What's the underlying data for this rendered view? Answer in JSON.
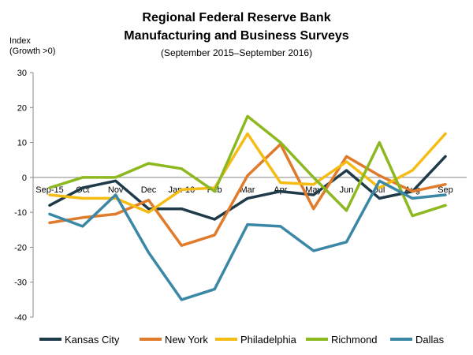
{
  "chart_data": {
    "type": "line",
    "title_line1": "Regional Federal Reserve Bank",
    "title_line2": "Manufacturing and Business Surveys",
    "subtitle": "(September  2015–September  2016)",
    "ylabel_line1": "Index",
    "ylabel_line2": "(Growth >0)",
    "categories": [
      "Sep-15",
      "Oct",
      "Nov",
      "Dec",
      "Jan-16",
      "Feb",
      "Mar",
      "Apr",
      "May",
      "Jun",
      "Jul",
      "Aug",
      "Sep"
    ],
    "ylim": [
      -40,
      30
    ],
    "yticks": [
      30,
      20,
      10,
      0,
      -10,
      -20,
      -30,
      -40
    ],
    "series": [
      {
        "name": "Kansas City",
        "color": "#1f3a48",
        "values": [
          -8,
          -3,
          -1,
          -9,
          -9,
          -12,
          -6,
          -4,
          -5,
          2,
          -6,
          -4,
          6
        ]
      },
      {
        "name": "New York",
        "color": "#e07b2c",
        "values": [
          -13,
          -11.5,
          -10.5,
          -6.5,
          -19.5,
          -16.5,
          0.5,
          9.5,
          -9,
          6,
          0.5,
          -4,
          -2
        ]
      },
      {
        "name": "Philadelphia",
        "color": "#f5bc16",
        "values": [
          -5,
          -6,
          -6,
          -10,
          -3.5,
          -3,
          12.5,
          -1.5,
          -2,
          4.5,
          -3,
          2,
          12.5
        ]
      },
      {
        "name": "Richmond",
        "color": "#8cb820",
        "values": [
          -3,
          0,
          0,
          4,
          2.5,
          -4,
          17.5,
          10,
          0,
          -9.5,
          10,
          -11,
          -8
        ]
      },
      {
        "name": "Dallas",
        "color": "#3a87a6",
        "values": [
          -10.5,
          -14,
          -5,
          -21.5,
          -35,
          -32,
          -13.5,
          -14,
          -21,
          -18.5,
          -1,
          -6,
          -5
        ]
      }
    ]
  }
}
